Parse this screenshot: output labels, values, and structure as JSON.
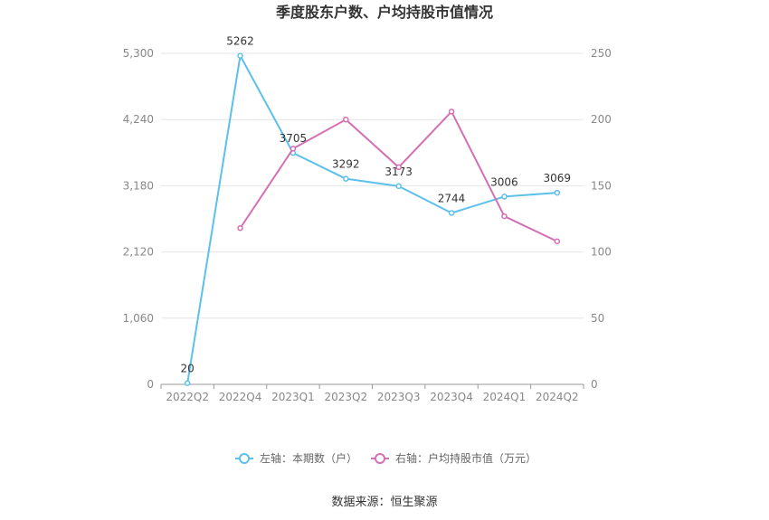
{
  "chart_data": {
    "type": "line",
    "title": "季度股东户数、户均持股市值情况",
    "categories": [
      "2022Q2",
      "2022Q4",
      "2023Q1",
      "2023Q2",
      "2023Q3",
      "2023Q4",
      "2024Q1",
      "2024Q2"
    ],
    "y_left": {
      "ticks": [
        "0",
        "1,060",
        "2,120",
        "3,180",
        "4,240",
        "5,300"
      ],
      "range": [
        0,
        5300
      ]
    },
    "y_right": {
      "ticks": [
        "0",
        "50",
        "100",
        "150",
        "200",
        "250"
      ],
      "range": [
        0,
        250
      ]
    },
    "series": [
      {
        "name": "左轴：本期数（户）",
        "axis": "left",
        "color": "#5bc0eb",
        "values": [
          20,
          5262,
          3705,
          3292,
          3173,
          2744,
          3006,
          3069
        ],
        "labels": [
          "20",
          "5262",
          "3705",
          "3292",
          "3173",
          "2744",
          "3006",
          "3069"
        ]
      },
      {
        "name": "右轴：户均持股市值（万元）",
        "axis": "right",
        "color": "#d46fb4",
        "values": [
          null,
          118,
          178,
          200,
          164,
          206,
          127,
          108
        ]
      }
    ],
    "grid": true,
    "legend_position": "bottom-center",
    "source": "数据来源：恒生聚源"
  }
}
